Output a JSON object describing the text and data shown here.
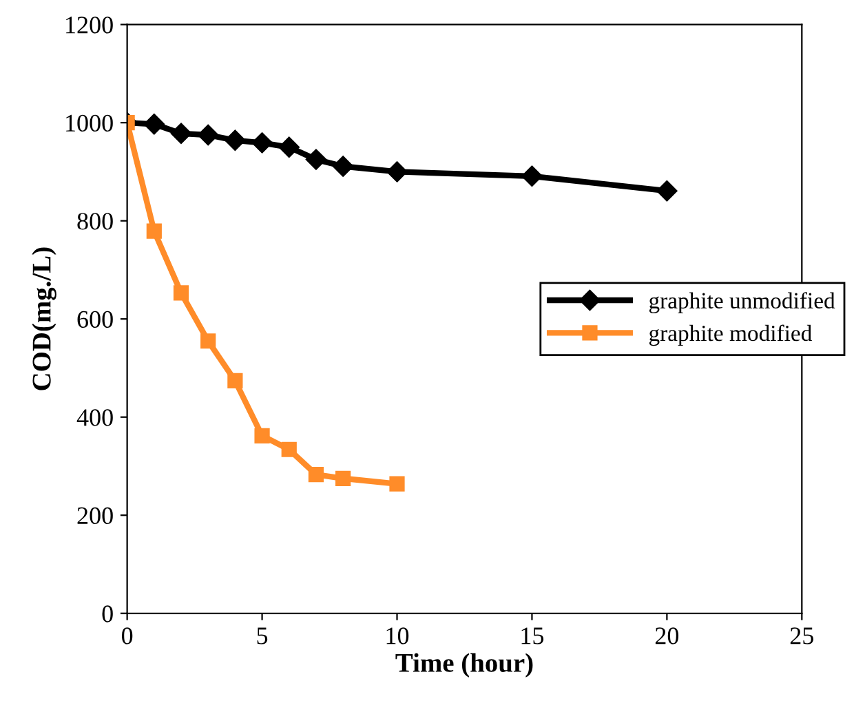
{
  "chart_data": {
    "type": "line",
    "xlabel": "Time (hour)",
    "ylabel": "COD(mg./L)",
    "xlim": [
      0,
      25
    ],
    "xticks": [
      0,
      5,
      10,
      15,
      20,
      25
    ],
    "ylim": [
      0,
      1200
    ],
    "yticks": [
      0,
      200,
      400,
      600,
      800,
      1000,
      1200
    ],
    "grid": false,
    "legend": "right",
    "line_style": "solid",
    "series": [
      {
        "name": "graphite unmodified",
        "color": "#000000",
        "marker": "diamond",
        "x": [
          0,
          1,
          2,
          3,
          4,
          5,
          6,
          7,
          8,
          10,
          15,
          20
        ],
        "values": [
          1000,
          997,
          978,
          975,
          964,
          959,
          950,
          925,
          911,
          900,
          891,
          861
        ]
      },
      {
        "name": "graphite modified",
        "color": "#ff8c29",
        "marker": "square",
        "x": [
          0,
          1,
          2,
          3,
          4,
          5,
          6,
          7,
          8,
          10
        ],
        "values": [
          1000,
          779,
          653,
          555,
          474,
          362,
          334,
          283,
          275,
          264
        ]
      }
    ]
  }
}
